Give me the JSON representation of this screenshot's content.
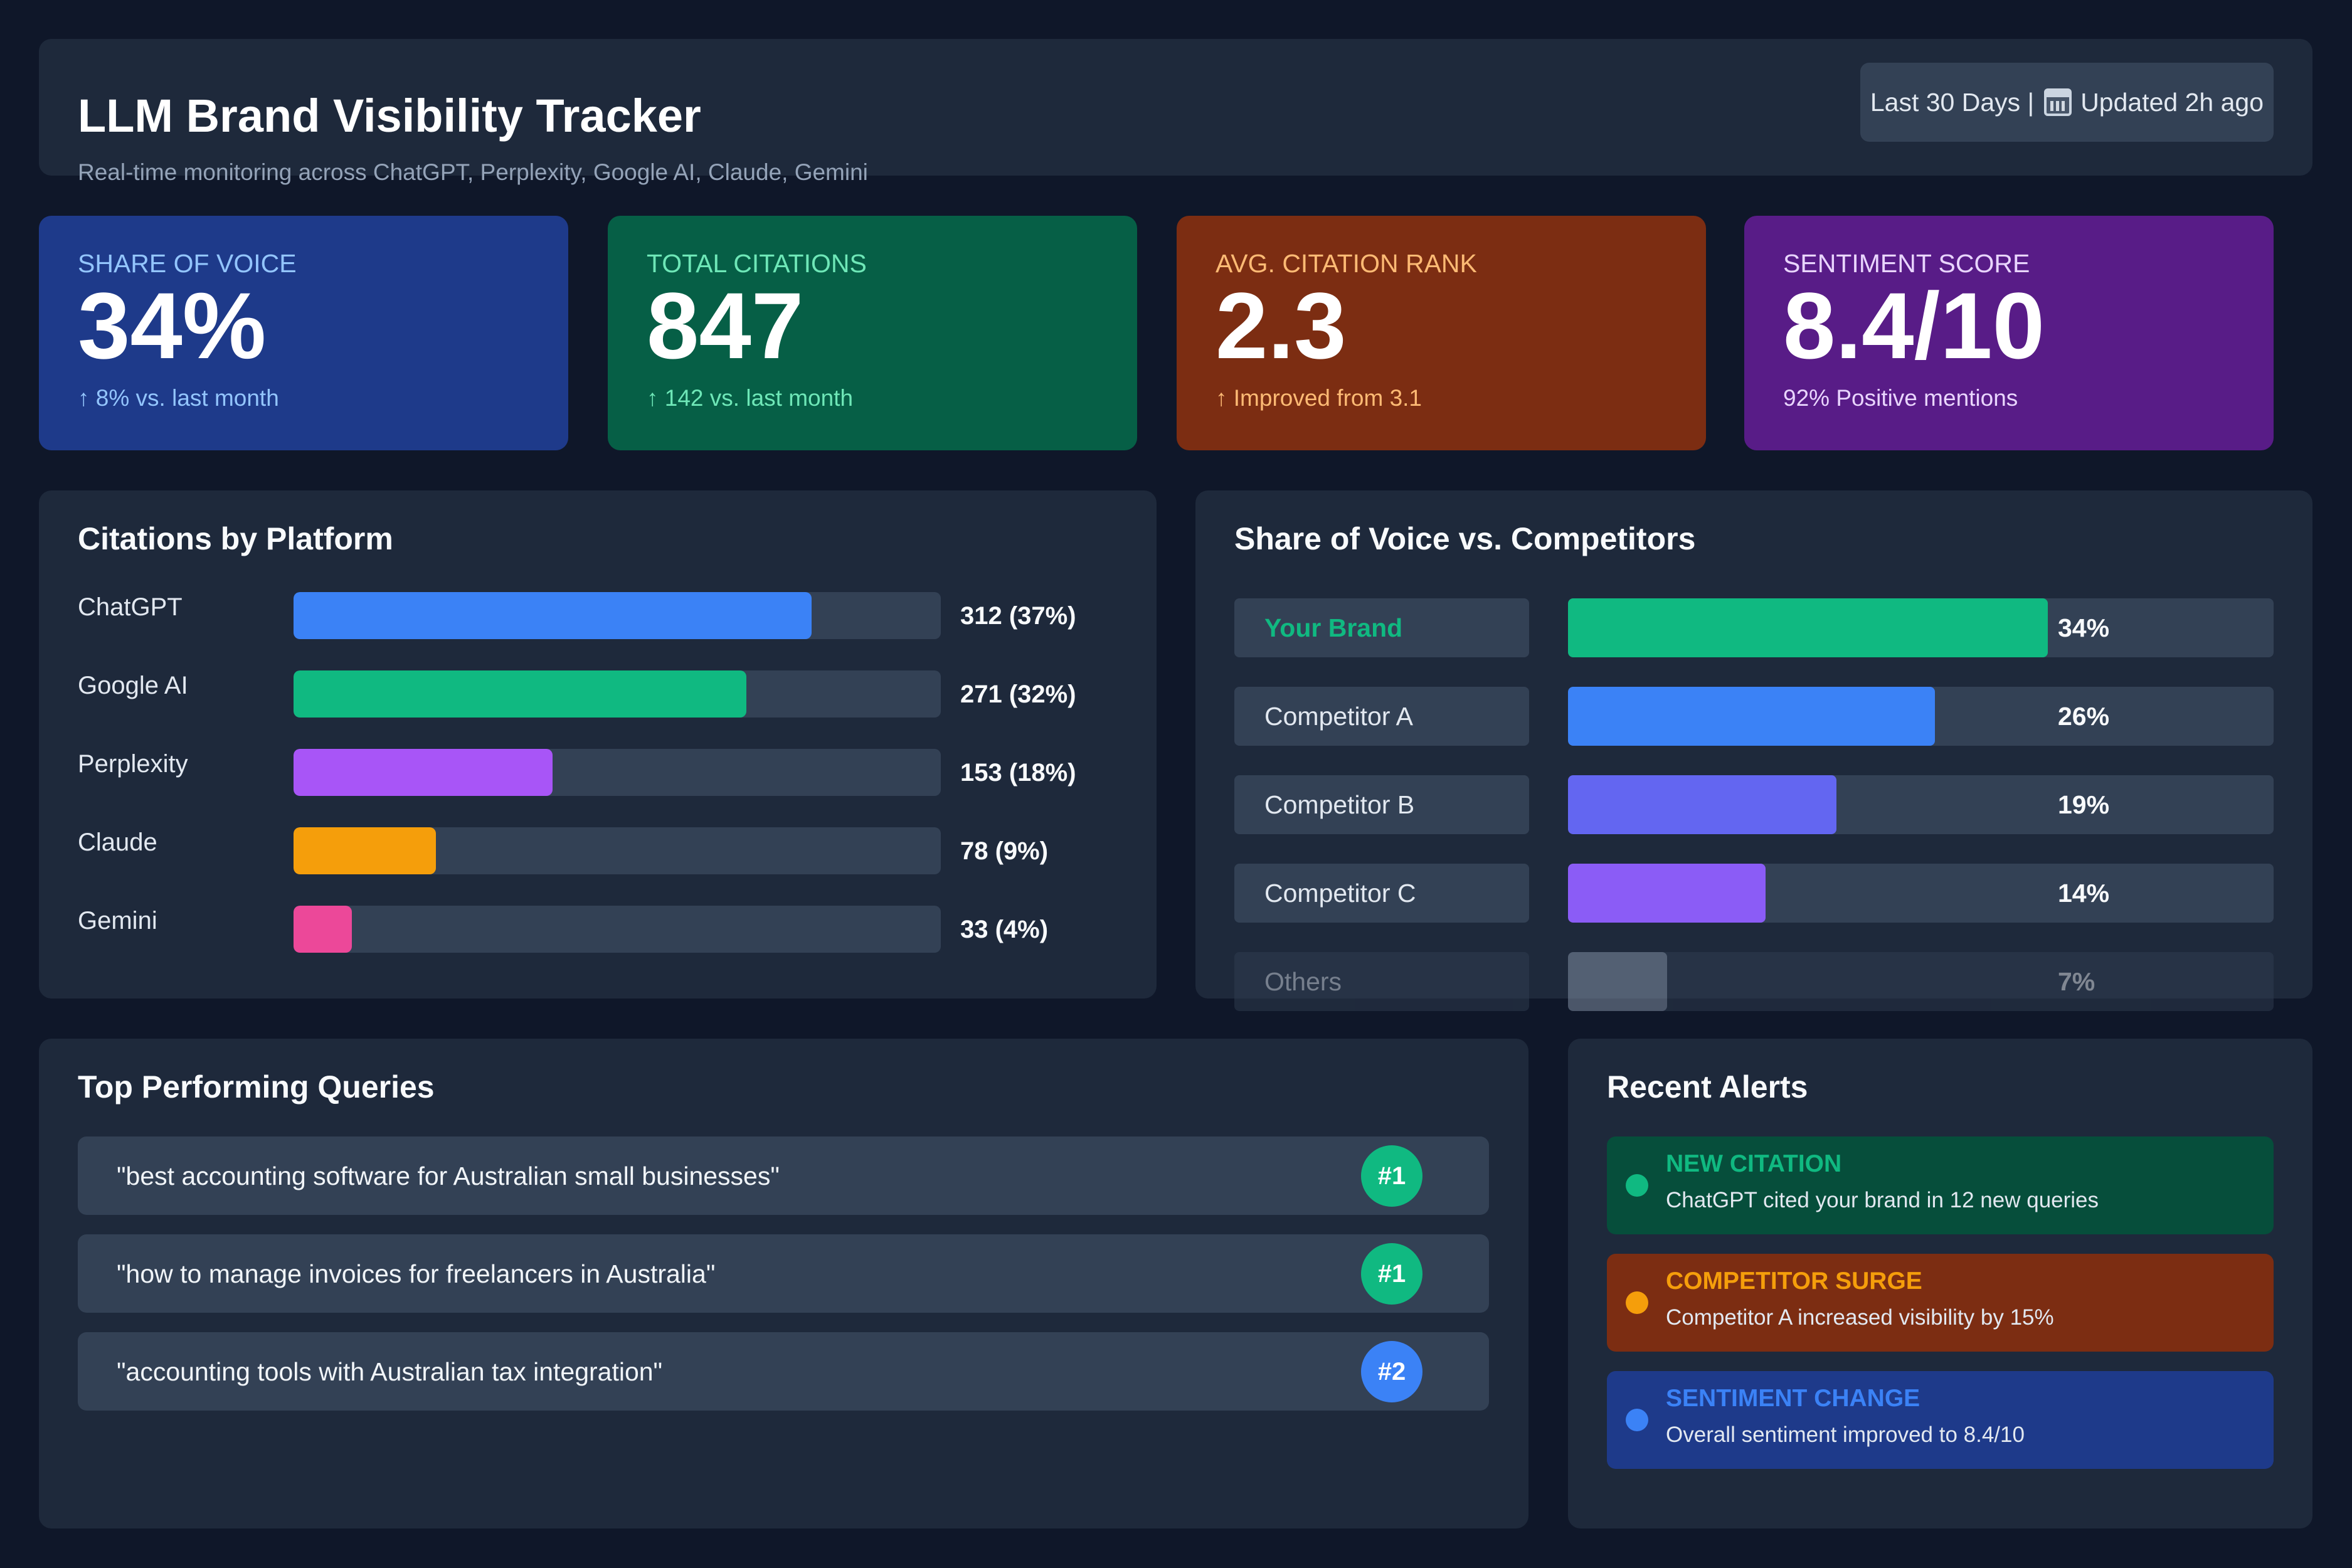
{
  "header": {
    "title": "LLM Brand Visibility Tracker",
    "subtitle": "Real-time monitoring across ChatGPT, Perplexity, Google AI, Claude, Gemini",
    "range_label": "Last 30 Days |",
    "updated_label": "Updated 2h ago",
    "calendar_icon": "calendar-icon"
  },
  "kpis": [
    {
      "label": "SHARE OF VOICE",
      "value": "34%",
      "note": "↑ 8% vs. last month",
      "color": "#1e3a8a"
    },
    {
      "label": "TOTAL CITATIONS",
      "value": "847",
      "note": "↑ 142 vs. last month",
      "color": "#065f46"
    },
    {
      "label": "AVG. CITATION RANK",
      "value": "2.3",
      "note": "↑ Improved from 3.1",
      "color": "#7c2d12"
    },
    {
      "label": "SENTIMENT SCORE",
      "value": "8.4/10",
      "note": "92% Positive mentions",
      "color": "#581c87"
    }
  ],
  "platforms": {
    "title": "Citations by Platform",
    "items": [
      {
        "name": "ChatGPT",
        "value_label": "312 (37%)",
        "level": 0.8,
        "color": "#3b82f6"
      },
      {
        "name": "Google AI",
        "value_label": "271 (32%)",
        "level": 0.7,
        "color": "#10b981"
      },
      {
        "name": "Perplexity",
        "value_label": "153 (18%)",
        "level": 0.4,
        "color": "#a855f7"
      },
      {
        "name": "Claude",
        "value_label": "78 (9%)",
        "level": 0.22,
        "color": "#f59e0b"
      },
      {
        "name": "Gemini",
        "value_label": "33 (4%)",
        "level": 0.09,
        "color": "#ec4899"
      }
    ]
  },
  "share_of_voice": {
    "title": "Share of Voice vs. Competitors",
    "items": [
      {
        "name": "Your Brand",
        "value_label": "34%",
        "level": 0.68,
        "color": "#10b981"
      },
      {
        "name": "Competitor A",
        "value_label": "26%",
        "level": 0.52,
        "color": "#3b82f6"
      },
      {
        "name": "Competitor B",
        "value_label": "19%",
        "level": 0.38,
        "color": "#6366f1"
      },
      {
        "name": "Competitor C",
        "value_label": "14%",
        "level": 0.28,
        "color": "#8b5cf6"
      },
      {
        "name": "Others",
        "value_label": "7%",
        "level": 0.14,
        "color": "#94a3b8"
      }
    ]
  },
  "queries": {
    "title": "Top Performing Queries",
    "items": [
      {
        "text": "\"best accounting software for Australian small businesses\"",
        "rank": "#1",
        "color": "#10b981"
      },
      {
        "text": "\"how to manage invoices for freelancers in Australia\"",
        "rank": "#1",
        "color": "#10b981"
      },
      {
        "text": "\"accounting tools with Australian tax integration\"",
        "rank": "#2",
        "color": "#3b82f6"
      }
    ]
  },
  "alerts": {
    "title": "Recent Alerts",
    "items": [
      {
        "title": "NEW CITATION",
        "desc": "ChatGPT cited your brand in 12 new queries",
        "bg": "#064e3b",
        "accent": "#10b981"
      },
      {
        "title": "COMPETITOR SURGE",
        "desc": "Competitor A increased visibility by 15%",
        "bg": "#7c2d12",
        "accent": "#f59e0b"
      },
      {
        "title": "SENTIMENT CHANGE",
        "desc": "Overall sentiment improved to 8.4/10",
        "bg": "#1e3a8a",
        "accent": "#3b82f6"
      }
    ]
  }
}
